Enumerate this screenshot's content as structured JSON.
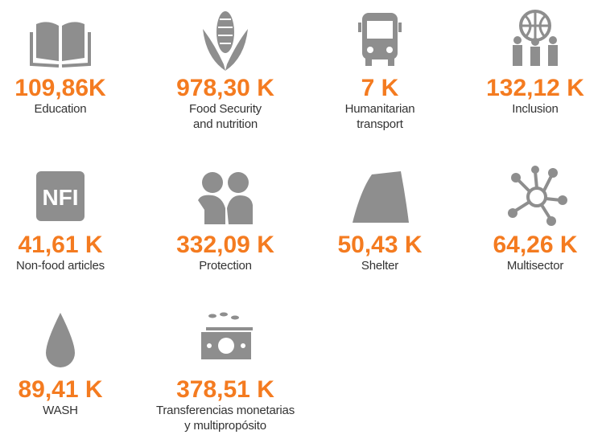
{
  "items": [
    {
      "value": "109,86K",
      "label": "Education"
    },
    {
      "value": "978,30 K",
      "label": "Food Security\nand nutrition"
    },
    {
      "value": "7 K",
      "label": "Humanitarian\ntransport"
    },
    {
      "value": "132,12 K",
      "label": "Inclusion"
    },
    {
      "value": "41,61 K",
      "label": "Non-food articles",
      "icon_text": "NFI"
    },
    {
      "value": "332,09 K",
      "label": "Protection"
    },
    {
      "value": "50,43 K",
      "label": "Shelter"
    },
    {
      "value": "64,26 K",
      "label": "Multisector"
    },
    {
      "value": "89,41 K",
      "label": "WASH"
    },
    {
      "value": "378,51 K",
      "label": "Transferencias monetarias\ny multipropósito"
    }
  ]
}
